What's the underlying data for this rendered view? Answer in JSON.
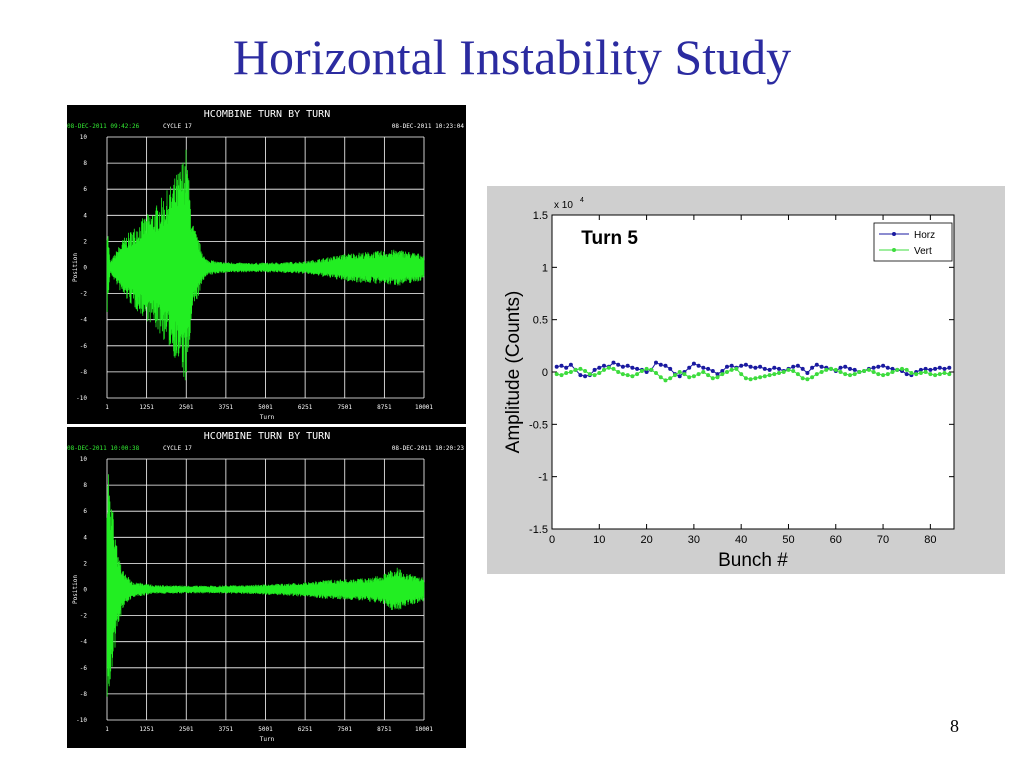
{
  "slide": {
    "title": "Horizontal Instability Study",
    "page_number": "8"
  },
  "scope_plots": [
    {
      "id": "scope-top",
      "header": "HCOMBINE TURN BY TURN",
      "left_stamp": "08-DEC-2011 09:42:26",
      "cycle": "CYCLE 17",
      "right_stamp": "08-DEC-2011 10:23:04",
      "ylabel": "Position",
      "xlabel": "Turn",
      "y_ticks": [
        "10",
        "8",
        "6",
        "4",
        "2",
        "0",
        "-2",
        "-4",
        "-6",
        "-8",
        "-10"
      ],
      "x_ticks": [
        "1",
        "1251",
        "2501",
        "3751",
        "5001",
        "6251",
        "7501",
        "8751",
        "10001"
      ],
      "trace_color": "#22ee22",
      "envelope": {
        "turn": [
          1,
          100,
          500,
          1000,
          1500,
          2000,
          2300,
          2500,
          2700,
          3100,
          3500,
          4500,
          5500,
          6300,
          7000,
          7600,
          8200,
          8700,
          9200,
          10001
        ],
        "amplitude": [
          3.8,
          0.4,
          2.2,
          3.5,
          4.6,
          6.3,
          7.7,
          9.3,
          3.5,
          0.7,
          0.45,
          0.35,
          0.4,
          0.5,
          0.8,
          1.1,
          1.2,
          1.3,
          1.4,
          1.0
        ]
      }
    },
    {
      "id": "scope-bottom",
      "header": "HCOMBINE TURN BY TURN",
      "left_stamp": "08-DEC-2011 10:00:38",
      "cycle": "CYCLE 17",
      "right_stamp": "08-DEC-2011 10:20:23",
      "ylabel": "Position",
      "xlabel": "Turn",
      "y_ticks": [
        "10",
        "8",
        "6",
        "4",
        "2",
        "0",
        "-2",
        "-4",
        "-6",
        "-8",
        "-10"
      ],
      "x_ticks": [
        "1",
        "1251",
        "2501",
        "3751",
        "5001",
        "6251",
        "7501",
        "8751",
        "10001"
      ],
      "trace_color": "#22ee22",
      "envelope": {
        "turn": [
          1,
          150,
          300,
          500,
          800,
          1500,
          2500,
          3500,
          4500,
          5500,
          6500,
          7000,
          7600,
          8200,
          8700,
          9100,
          9400,
          10001
        ],
        "amplitude": [
          10,
          7,
          3.5,
          1.5,
          0.6,
          0.35,
          0.3,
          0.3,
          0.35,
          0.45,
          0.6,
          0.75,
          0.8,
          0.9,
          1.1,
          1.8,
          1.3,
          0.9
        ]
      }
    }
  ],
  "chart_data": {
    "type": "line",
    "annotation": "Turn 5",
    "xlabel": "Bunch #",
    "ylabel": "Amplitude (Counts)",
    "y_multiplier": "x 10",
    "y_multiplier_exp": "4",
    "xlim": [
      0,
      85
    ],
    "ylim": [
      -1.5,
      1.5
    ],
    "x_ticks": [
      "0",
      "10",
      "20",
      "30",
      "40",
      "50",
      "60",
      "70",
      "80"
    ],
    "y_ticks": [
      "1.5",
      "1",
      "0.5",
      "0",
      "-0.5",
      "-1",
      "-1.5"
    ],
    "legend_placement": "top-right",
    "series": [
      {
        "name": "Horz",
        "color": "#1a1aa0",
        "x": [
          1,
          2,
          3,
          4,
          5,
          6,
          7,
          8,
          9,
          10,
          11,
          12,
          13,
          14,
          15,
          16,
          17,
          18,
          19,
          20,
          21,
          22,
          23,
          24,
          25,
          26,
          27,
          28,
          29,
          30,
          31,
          32,
          33,
          34,
          35,
          36,
          37,
          38,
          39,
          40,
          41,
          42,
          43,
          44,
          45,
          46,
          47,
          48,
          49,
          50,
          51,
          52,
          53,
          54,
          55,
          56,
          57,
          58,
          59,
          60,
          61,
          62,
          63,
          64,
          65,
          66,
          67,
          68,
          69,
          70,
          71,
          72,
          73,
          74,
          75,
          76,
          77,
          78,
          79,
          80,
          81,
          82,
          83,
          84
        ],
        "y": [
          0.05,
          0.06,
          0.04,
          0.07,
          0.02,
          -0.03,
          -0.04,
          -0.03,
          0.02,
          0.04,
          0.06,
          0.05,
          0.09,
          0.07,
          0.05,
          0.06,
          0.04,
          0.03,
          0.02,
          0.0,
          0.02,
          0.09,
          0.07,
          0.06,
          0.03,
          -0.02,
          -0.04,
          0.0,
          0.04,
          0.08,
          0.06,
          0.04,
          0.03,
          0.01,
          -0.02,
          0.01,
          0.05,
          0.06,
          0.04,
          0.06,
          0.07,
          0.05,
          0.04,
          0.05,
          0.03,
          0.02,
          0.04,
          0.03,
          0.01,
          0.03,
          0.05,
          0.06,
          0.03,
          -0.01,
          0.04,
          0.07,
          0.05,
          0.04,
          0.03,
          0.01,
          0.04,
          0.05,
          0.03,
          0.02,
          0.0,
          0.01,
          0.03,
          0.04,
          0.05,
          0.06,
          0.04,
          0.03,
          0.02,
          0.01,
          -0.02,
          -0.03,
          0.0,
          0.02,
          0.03,
          0.02,
          0.03,
          0.04,
          0.03,
          0.04
        ]
      },
      {
        "name": "Vert",
        "color": "#3ddc3d",
        "x": [
          1,
          2,
          3,
          4,
          5,
          6,
          7,
          8,
          9,
          10,
          11,
          12,
          13,
          14,
          15,
          16,
          17,
          18,
          19,
          20,
          21,
          22,
          23,
          24,
          25,
          26,
          27,
          28,
          29,
          30,
          31,
          32,
          33,
          34,
          35,
          36,
          37,
          38,
          39,
          40,
          41,
          42,
          43,
          44,
          45,
          46,
          47,
          48,
          49,
          50,
          51,
          52,
          53,
          54,
          55,
          56,
          57,
          58,
          59,
          60,
          61,
          62,
          63,
          64,
          65,
          66,
          67,
          68,
          69,
          70,
          71,
          72,
          73,
          74,
          75,
          76,
          77,
          78,
          79,
          80,
          81,
          82,
          83,
          84
        ],
        "y": [
          -0.02,
          -0.03,
          -0.01,
          0.0,
          0.02,
          0.03,
          0.01,
          -0.02,
          -0.03,
          -0.01,
          0.02,
          0.04,
          0.03,
          0.0,
          -0.02,
          -0.03,
          -0.04,
          -0.02,
          0.01,
          0.03,
          0.02,
          -0.01,
          -0.05,
          -0.08,
          -0.06,
          -0.03,
          0.0,
          -0.02,
          -0.05,
          -0.04,
          -0.02,
          0.0,
          -0.03,
          -0.06,
          -0.05,
          -0.02,
          0.0,
          0.02,
          0.03,
          -0.02,
          -0.06,
          -0.07,
          -0.06,
          -0.05,
          -0.04,
          -0.03,
          -0.02,
          -0.01,
          0.0,
          0.02,
          0.01,
          -0.02,
          -0.06,
          -0.07,
          -0.05,
          -0.02,
          0.0,
          0.02,
          0.03,
          0.02,
          0.0,
          -0.02,
          -0.03,
          -0.02,
          0.0,
          0.01,
          0.02,
          0.0,
          -0.02,
          -0.03,
          -0.02,
          0.0,
          0.02,
          0.03,
          0.02,
          -0.01,
          -0.02,
          -0.01,
          0.0,
          -0.02,
          -0.03,
          -0.02,
          -0.01,
          -0.02
        ]
      }
    ]
  }
}
